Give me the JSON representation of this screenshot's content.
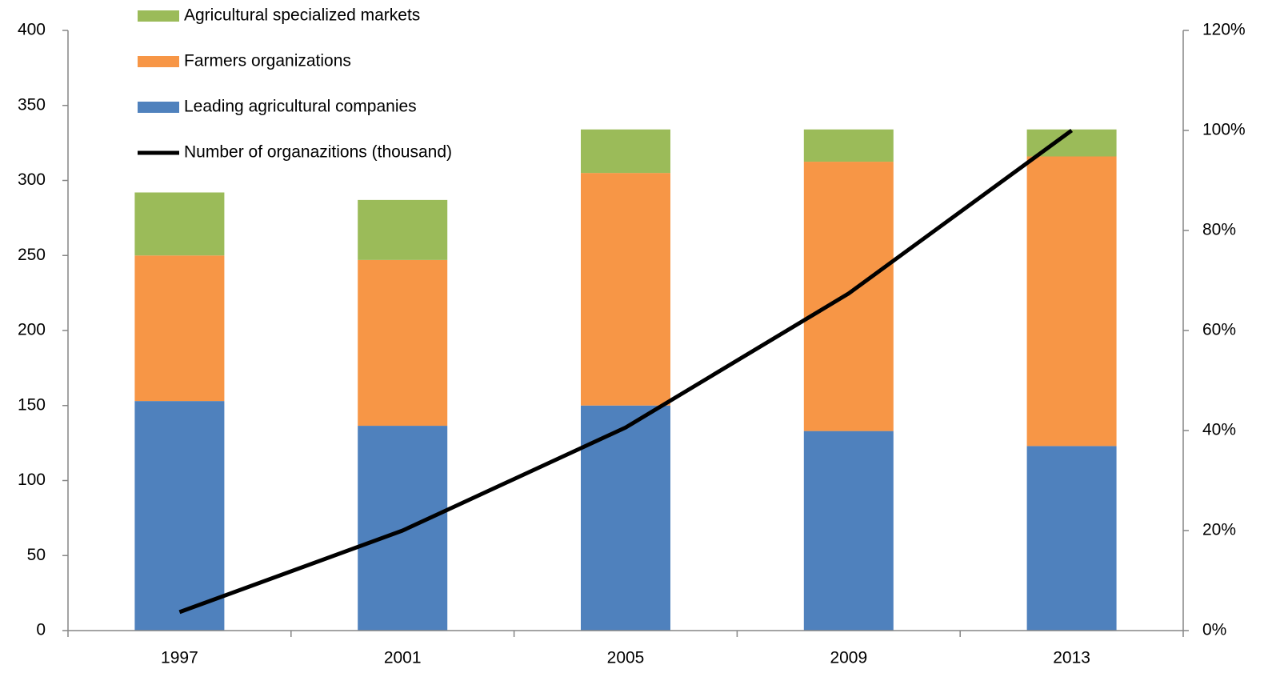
{
  "chart_data": {
    "type": "bar",
    "stacked": true,
    "categories": [
      "1997",
      "2001",
      "2005",
      "2009",
      "2013"
    ],
    "series": [
      {
        "name": "Leading agricultural companies",
        "color": "#4f81bd",
        "values": [
          153,
          136.5,
          150,
          133,
          123
        ]
      },
      {
        "name": "Farmers organizations",
        "color": "#f79646",
        "values": [
          97,
          110.5,
          155,
          179.5,
          193
        ]
      },
      {
        "name": "Agricultural specialized markets",
        "color": "#9bbb59",
        "values": [
          42,
          40,
          29,
          21.5,
          18
        ]
      },
      {
        "name": "Number of organazitions (thousand)",
        "color": "#000000",
        "type": "line",
        "axis": "y2",
        "values": [
          3.7,
          20,
          40.6,
          67.4,
          100
        ]
      }
    ],
    "ylim": [
      0,
      400
    ],
    "yticks": [
      0,
      50,
      100,
      150,
      200,
      250,
      300,
      350,
      400
    ],
    "y2lim": [
      0,
      120
    ],
    "y2ticks": [
      {
        "value": 0,
        "label": "0%"
      },
      {
        "value": 20,
        "label": "20%"
      },
      {
        "value": 40,
        "label": "40%"
      },
      {
        "value": 60,
        "label": "60%"
      },
      {
        "value": 80,
        "label": "80%"
      },
      {
        "value": 100,
        "label": "100%"
      },
      {
        "value": 120,
        "label": "120%"
      }
    ],
    "grid": false,
    "legend": "top-left"
  }
}
